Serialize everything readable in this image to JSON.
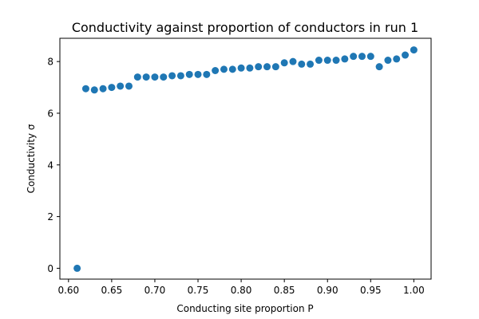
{
  "chart_data": {
    "type": "scatter",
    "title": "Conductivity against proportion of conductors in run 1",
    "xlabel": "Conducting site proportion P",
    "ylabel": "Conductivity σ",
    "xlim": [
      0.59,
      1.02
    ],
    "ylim": [
      -0.42,
      8.9
    ],
    "xticks": [
      "0.60",
      "0.65",
      "0.70",
      "0.75",
      "0.80",
      "0.85",
      "0.90",
      "0.95",
      "1.00"
    ],
    "yticks": [
      "0",
      "2",
      "4",
      "6",
      "8"
    ],
    "grid": false,
    "marker_color": "#1f77b4",
    "series": [
      {
        "points": [
          [
            0.61,
            0.0
          ],
          [
            0.62,
            6.95
          ],
          [
            0.63,
            6.9
          ],
          [
            0.64,
            6.95
          ],
          [
            0.65,
            7.0
          ],
          [
            0.66,
            7.05
          ],
          [
            0.67,
            7.05
          ],
          [
            0.68,
            7.4
          ],
          [
            0.69,
            7.4
          ],
          [
            0.7,
            7.4
          ],
          [
            0.71,
            7.4
          ],
          [
            0.72,
            7.45
          ],
          [
            0.73,
            7.45
          ],
          [
            0.74,
            7.5
          ],
          [
            0.75,
            7.5
          ],
          [
            0.76,
            7.5
          ],
          [
            0.77,
            7.65
          ],
          [
            0.78,
            7.7
          ],
          [
            0.79,
            7.7
          ],
          [
            0.8,
            7.75
          ],
          [
            0.81,
            7.75
          ],
          [
            0.82,
            7.8
          ],
          [
            0.83,
            7.8
          ],
          [
            0.84,
            7.8
          ],
          [
            0.85,
            7.95
          ],
          [
            0.86,
            8.0
          ],
          [
            0.87,
            7.9
          ],
          [
            0.88,
            7.9
          ],
          [
            0.89,
            8.05
          ],
          [
            0.9,
            8.05
          ],
          [
            0.91,
            8.05
          ],
          [
            0.92,
            8.1
          ],
          [
            0.93,
            8.2
          ],
          [
            0.94,
            8.2
          ],
          [
            0.95,
            8.2
          ],
          [
            0.96,
            7.8
          ],
          [
            0.97,
            8.05
          ],
          [
            0.98,
            8.1
          ],
          [
            0.99,
            8.25
          ],
          [
            1.0,
            8.45
          ]
        ]
      }
    ]
  }
}
